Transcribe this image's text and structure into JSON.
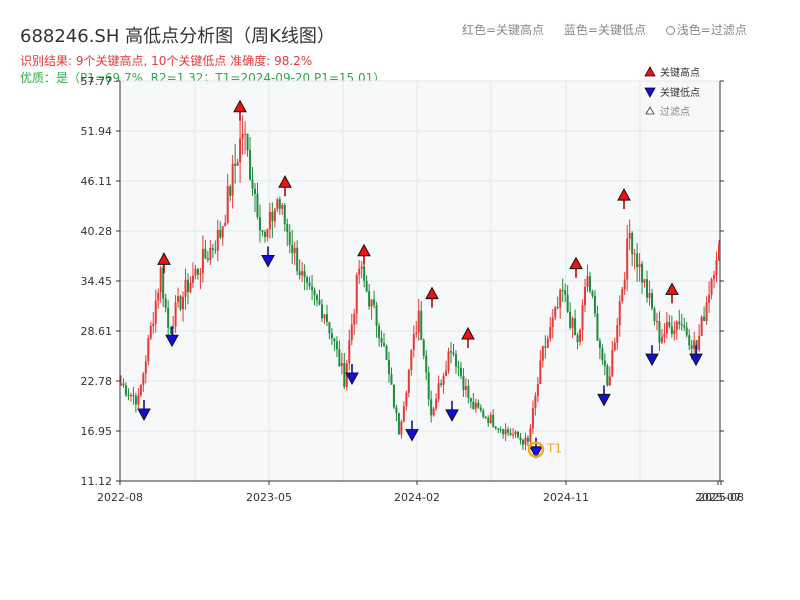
{
  "header": {
    "title": "688246.SH 高低点分析图（周K线图）",
    "result_line": "识别结果: 9个关键高点, 10个关键低点   准确度: 98.2%",
    "quality_line": "优质：是（P1=69.7%, R2=1.32；T1=2024-09-20 P1=15.01）"
  },
  "top_legend": {
    "red_label": "红色=关键高点",
    "blue_label": "蓝色=关键低点",
    "light_label": "浅色=过滤点"
  },
  "colors": {
    "up": "#e53935",
    "down": "#1e8c3a",
    "high_marker": "#ee1111",
    "low_marker": "#1010dd",
    "t1_ring": "#f5a623",
    "grid": "#e6e6e6",
    "plot_bg": "#f7f8fa"
  },
  "chart_data": {
    "type": "candlestick",
    "x_ticks": [
      "2022-08",
      "2023-05",
      "2024-02",
      "2024-11",
      "2025-07",
      "2025-08"
    ],
    "y_ticks": [
      11.12,
      16.95,
      22.78,
      28.61,
      34.45,
      40.28,
      46.11,
      51.94,
      57.77
    ],
    "ylim": [
      11.12,
      57.77
    ],
    "legend": [
      "关键高点",
      "关键低点",
      "过滤点"
    ],
    "annotations": [
      {
        "label": "T1",
        "date": "2024-09-20",
        "price": 15.01
      }
    ],
    "key_highs": [
      36.5,
      54.3,
      45.5,
      37.5,
      32.5,
      27.8,
      36.0,
      44.0,
      33.0
    ],
    "key_lows": [
      19.4,
      28.0,
      37.3,
      23.6,
      17.0,
      19.3,
      15.0,
      21.1,
      25.8,
      25.8
    ],
    "pivots": [
      [
        0,
        22.5
      ],
      [
        3,
        21.5
      ],
      [
        7,
        20.5
      ],
      [
        16,
        35.5
      ],
      [
        19,
        29.0
      ],
      [
        27,
        34.0
      ],
      [
        40,
        40.0
      ],
      [
        49,
        52.0
      ],
      [
        58,
        39.0
      ],
      [
        63,
        44.0
      ],
      [
        75,
        33.0
      ],
      [
        82,
        31.0
      ],
      [
        90,
        23.0
      ],
      [
        96,
        36.0
      ],
      [
        105,
        28.0
      ],
      [
        112,
        17.0
      ],
      [
        120,
        31.0
      ],
      [
        125,
        19.0
      ],
      [
        133,
        27.0
      ],
      [
        141,
        20.0
      ],
      [
        155,
        17.0
      ],
      [
        164,
        15.5
      ],
      [
        170,
        26.0
      ],
      [
        178,
        33.0
      ],
      [
        184,
        27.0
      ],
      [
        188,
        35.0
      ],
      [
        196,
        22.0
      ],
      [
        205,
        40.0
      ],
      [
        213,
        32.0
      ],
      [
        217,
        28.0
      ],
      [
        225,
        30.0
      ],
      [
        232,
        26.5
      ],
      [
        238,
        35.0
      ],
      [
        240,
        38.0
      ]
    ]
  }
}
